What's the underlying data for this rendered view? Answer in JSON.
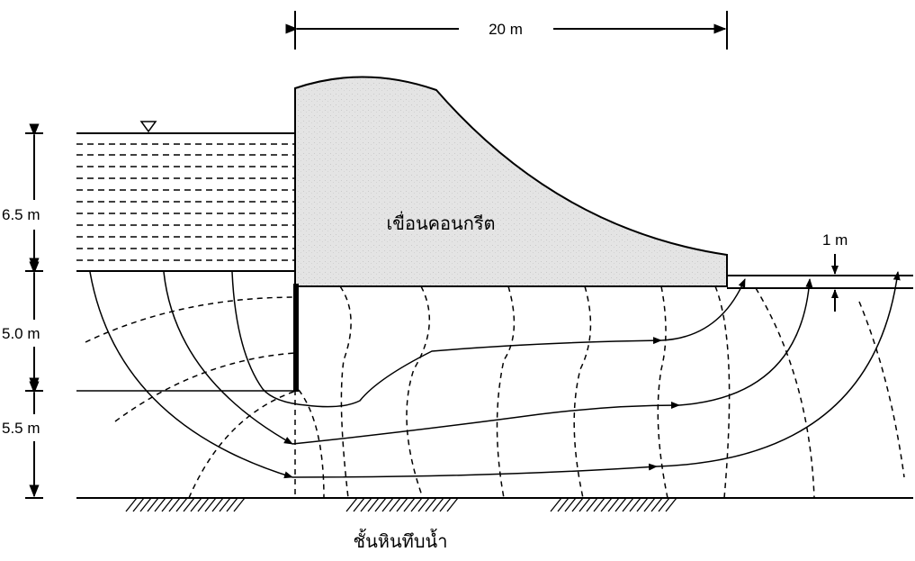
{
  "dimensions": {
    "dam_width": "20 m",
    "water_depth": "6.5 m",
    "sheet_pile_depth": "5.0 m",
    "lower_layer": "5.5 m",
    "tailwater_depth": "1 m"
  },
  "labels": {
    "dam": "เขื่อนคอนกรีต",
    "impermeable_layer": "ชั้นหินทึบน้ำ"
  },
  "colors": {
    "dam_fill": "#e6e6e6",
    "line": "#000000"
  }
}
